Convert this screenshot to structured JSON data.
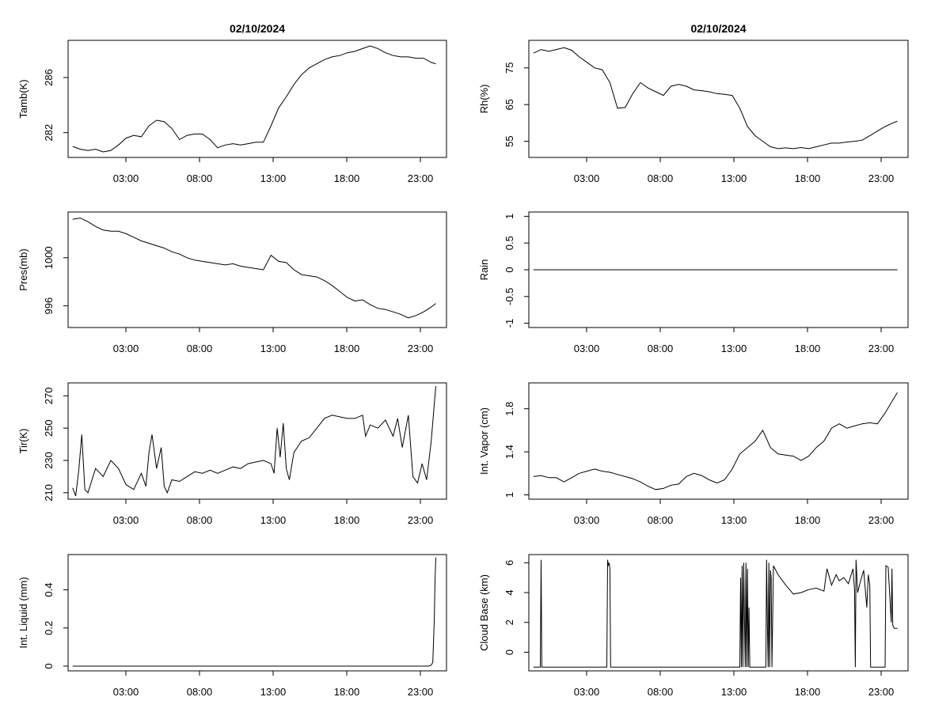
{
  "chart_data": [
    {
      "type": "line",
      "title": "02/10/2024",
      "ylabel": "Tamb(K)",
      "xlabel": "",
      "x_ticks": [
        "03:00",
        "08:00",
        "13:00",
        "18:00",
        "23:00"
      ],
      "y_ticks": [
        282,
        286
      ],
      "ylim": [
        280.2,
        288.7
      ],
      "xlim": [
        -0.3,
        24.5
      ],
      "x": [
        0.0,
        0.5,
        1.0,
        1.5,
        2.0,
        2.5,
        3.0,
        3.5,
        4.0,
        4.5,
        5.0,
        5.5,
        6.0,
        6.5,
        7.0,
        7.5,
        8.0,
        8.5,
        9.0,
        9.5,
        10.0,
        10.5,
        11.0,
        11.5,
        12.0,
        12.5,
        13.0,
        13.5,
        14.0,
        14.5,
        15.0,
        15.5,
        16.0,
        16.5,
        17.0,
        17.5,
        18.0,
        18.5,
        19.0,
        19.5,
        20.0,
        20.5,
        21.0,
        21.5,
        22.0,
        22.5,
        23.0,
        23.5,
        23.8
      ],
      "values": [
        281.0,
        280.8,
        280.7,
        280.8,
        280.6,
        280.7,
        281.1,
        281.6,
        281.8,
        281.7,
        282.5,
        282.9,
        282.8,
        282.3,
        281.5,
        281.8,
        281.9,
        281.9,
        281.5,
        280.9,
        281.1,
        281.2,
        281.1,
        281.2,
        281.3,
        281.3,
        282.5,
        283.8,
        284.6,
        285.5,
        286.2,
        286.7,
        287.0,
        287.3,
        287.5,
        287.6,
        287.8,
        287.9,
        288.1,
        288.3,
        288.1,
        287.8,
        287.6,
        287.5,
        287.5,
        287.4,
        287.4,
        287.1,
        287.0
      ]
    },
    {
      "type": "line",
      "title": "02/10/2024",
      "ylabel": "Rh(%)",
      "xlabel": "",
      "x_ticks": [
        "03:00",
        "08:00",
        "13:00",
        "18:00",
        "23:00"
      ],
      "y_ticks": [
        55,
        65,
        75
      ],
      "ylim": [
        50.6,
        82.5
      ],
      "xlim": [
        -0.3,
        24.5
      ],
      "x": [
        0.0,
        0.5,
        1.0,
        1.5,
        2.0,
        2.5,
        3.0,
        3.5,
        4.0,
        4.5,
        5.0,
        5.5,
        6.0,
        6.5,
        7.0,
        7.5,
        8.0,
        8.5,
        9.0,
        9.5,
        10.0,
        10.5,
        11.0,
        11.5,
        12.0,
        12.5,
        13.0,
        13.5,
        14.0,
        14.5,
        15.0,
        15.5,
        16.0,
        16.5,
        17.0,
        17.5,
        18.0,
        18.5,
        19.0,
        19.5,
        20.0,
        20.5,
        21.0,
        21.5,
        22.0,
        22.5,
        23.0,
        23.5,
        23.8
      ],
      "values": [
        79.0,
        80.0,
        79.5,
        80.0,
        80.5,
        79.8,
        78.0,
        76.5,
        75.0,
        74.5,
        71.0,
        64.0,
        64.2,
        68.0,
        71.0,
        69.5,
        68.5,
        67.5,
        70.0,
        70.5,
        70.0,
        69.0,
        68.8,
        68.5,
        68.0,
        67.8,
        67.5,
        64.0,
        59.0,
        56.5,
        55.0,
        53.5,
        53.0,
        53.2,
        53.0,
        53.3,
        53.0,
        53.5,
        54.0,
        54.5,
        54.5,
        54.8,
        55.0,
        55.3,
        56.5,
        57.8,
        59.0,
        60.0,
        60.5
      ]
    },
    {
      "type": "line",
      "title": "",
      "ylabel": "Pres(mb)",
      "xlabel": "",
      "x_ticks": [
        "03:00",
        "08:00",
        "13:00",
        "18:00",
        "23:00"
      ],
      "y_ticks": [
        996,
        1000
      ],
      "ylim": [
        994.2,
        1003.8
      ],
      "xlim": [
        -0.3,
        24.5
      ],
      "x": [
        0.0,
        0.5,
        1.0,
        1.5,
        2.0,
        2.5,
        3.0,
        3.5,
        4.0,
        4.5,
        5.0,
        5.5,
        6.0,
        6.5,
        7.0,
        7.5,
        8.0,
        8.5,
        9.0,
        9.5,
        10.0,
        10.5,
        11.0,
        11.5,
        12.0,
        12.5,
        13.0,
        13.5,
        14.0,
        14.5,
        15.0,
        15.5,
        16.0,
        16.5,
        17.0,
        17.5,
        18.0,
        18.5,
        19.0,
        19.5,
        20.0,
        20.5,
        21.0,
        21.5,
        22.0,
        22.5,
        23.0,
        23.5,
        23.8
      ],
      "values": [
        1003.2,
        1003.3,
        1003.0,
        1002.6,
        1002.3,
        1002.2,
        1002.2,
        1002.0,
        1001.7,
        1001.4,
        1001.2,
        1001.0,
        1000.8,
        1000.5,
        1000.3,
        1000.0,
        999.8,
        999.7,
        999.6,
        999.5,
        999.4,
        999.5,
        999.3,
        999.2,
        999.1,
        999.0,
        1000.2,
        999.7,
        999.6,
        999.0,
        998.6,
        998.5,
        998.4,
        998.1,
        997.7,
        997.2,
        996.7,
        996.4,
        996.5,
        996.1,
        995.8,
        995.7,
        995.5,
        995.3,
        995.0,
        995.2,
        995.5,
        995.9,
        996.2
      ]
    },
    {
      "type": "line",
      "title": "",
      "ylabel": "Rain",
      "xlabel": "",
      "x_ticks": [
        "03:00",
        "08:00",
        "13:00",
        "18:00",
        "23:00"
      ],
      "y_ticks": [
        -1.0,
        -0.5,
        0.0,
        0.5,
        1.0
      ],
      "ylim": [
        -1.08,
        1.08
      ],
      "xlim": [
        -0.3,
        24.5
      ],
      "x": [
        0.0,
        23.8
      ],
      "values": [
        0.0,
        0.0
      ]
    },
    {
      "type": "line",
      "title": "",
      "ylabel": "Tir(K)",
      "xlabel": "",
      "x_ticks": [
        "03:00",
        "08:00",
        "13:00",
        "18:00",
        "23:00"
      ],
      "y_ticks": [
        210,
        230,
        250,
        270
      ],
      "ylim": [
        206.0,
        278.0
      ],
      "xlim": [
        -0.3,
        24.5
      ],
      "x": [
        0.0,
        0.2,
        0.4,
        0.6,
        0.8,
        1.0,
        1.2,
        1.5,
        2.0,
        2.5,
        3.0,
        3.5,
        4.0,
        4.5,
        4.8,
        5.0,
        5.2,
        5.5,
        5.8,
        6.0,
        6.2,
        6.5,
        7.0,
        7.5,
        8.0,
        8.5,
        9.0,
        9.5,
        10.0,
        10.5,
        11.0,
        11.5,
        12.0,
        12.5,
        13.0,
        13.2,
        13.4,
        13.6,
        13.8,
        14.0,
        14.2,
        14.5,
        15.0,
        15.5,
        16.0,
        16.5,
        17.0,
        17.5,
        18.0,
        18.5,
        19.0,
        19.2,
        19.5,
        20.0,
        20.5,
        21.0,
        21.3,
        21.6,
        22.0,
        22.3,
        22.6,
        22.9,
        23.2,
        23.5,
        23.7,
        23.8
      ],
      "values": [
        213,
        208,
        224,
        246,
        212,
        210,
        216,
        225,
        220,
        230,
        225,
        215,
        212,
        222,
        214,
        235,
        246,
        225,
        238,
        214,
        210,
        218,
        217,
        220,
        223,
        222,
        224,
        222,
        224,
        226,
        225,
        228,
        229,
        230,
        228,
        222,
        250,
        232,
        253,
        225,
        218,
        235,
        242,
        244,
        250,
        256,
        258,
        257,
        256,
        256,
        258,
        245,
        252,
        250,
        255,
        245,
        256,
        238,
        258,
        220,
        216,
        228,
        218,
        242,
        265,
        276
      ]
    },
    {
      "type": "line",
      "title": "",
      "ylabel": "Int. Vapor (cm)",
      "xlabel": "",
      "x_ticks": [
        "03:00",
        "08:00",
        "13:00",
        "18:00",
        "23:00"
      ],
      "y_ticks": [
        1.0,
        1.4,
        1.8
      ],
      "ylim": [
        0.96,
        2.04
      ],
      "xlim": [
        -0.3,
        24.5
      ],
      "x": [
        0.0,
        0.5,
        1.0,
        1.5,
        2.0,
        2.5,
        3.0,
        3.5,
        4.0,
        4.5,
        5.0,
        5.5,
        6.0,
        6.5,
        7.0,
        7.5,
        8.0,
        8.5,
        9.0,
        9.5,
        10.0,
        10.5,
        11.0,
        11.5,
        12.0,
        12.5,
        13.0,
        13.5,
        14.0,
        14.5,
        15.0,
        15.5,
        16.0,
        16.5,
        17.0,
        17.5,
        18.0,
        18.5,
        19.0,
        19.5,
        20.0,
        20.5,
        21.0,
        21.5,
        22.0,
        22.5,
        23.0,
        23.5,
        23.8
      ],
      "values": [
        1.17,
        1.18,
        1.16,
        1.16,
        1.12,
        1.16,
        1.2,
        1.22,
        1.24,
        1.22,
        1.21,
        1.19,
        1.17,
        1.15,
        1.12,
        1.08,
        1.05,
        1.06,
        1.09,
        1.1,
        1.17,
        1.2,
        1.18,
        1.14,
        1.11,
        1.14,
        1.24,
        1.38,
        1.44,
        1.5,
        1.6,
        1.44,
        1.38,
        1.37,
        1.36,
        1.32,
        1.36,
        1.44,
        1.5,
        1.62,
        1.66,
        1.62,
        1.64,
        1.66,
        1.67,
        1.66,
        1.76,
        1.88,
        1.95
      ]
    },
    {
      "type": "line",
      "title": "",
      "ylabel": "Int. Liquid (mm)",
      "xlabel": "",
      "x_ticks": [
        "03:00",
        "08:00",
        "13:00",
        "18:00",
        "23:00"
      ],
      "y_ticks": [
        0.0,
        0.2,
        0.4
      ],
      "ylim": [
        -0.025,
        0.585
      ],
      "xlim": [
        -0.3,
        24.5
      ],
      "x": [
        0.0,
        23.3,
        23.5,
        23.6,
        23.7,
        23.75,
        23.8
      ],
      "values": [
        0.0,
        0.0,
        0.005,
        0.02,
        0.25,
        0.45,
        0.57
      ]
    },
    {
      "type": "line",
      "title": "",
      "ylabel": "Cloud Base (km)",
      "xlabel": "",
      "x_ticks": [
        "03:00",
        "08:00",
        "13:00",
        "18:00",
        "23:00"
      ],
      "y_ticks": [
        0,
        2,
        4,
        6
      ],
      "ylim": [
        -1.25,
        6.55
      ],
      "xlim": [
        -0.3,
        24.5
      ],
      "x": [
        0.0,
        0.45,
        0.5,
        0.55,
        4.8,
        4.85,
        4.9,
        4.95,
        5.0,
        5.05,
        13.5,
        13.55,
        13.6,
        13.65,
        13.7,
        13.75,
        13.8,
        13.85,
        13.9,
        13.95,
        14.0,
        14.05,
        14.1,
        14.15,
        15.2,
        15.25,
        15.3,
        15.35,
        15.4,
        15.45,
        15.5,
        15.55,
        15.6,
        15.7,
        16.0,
        16.5,
        17.0,
        17.5,
        18.0,
        18.5,
        19.0,
        19.2,
        19.5,
        19.8,
        20.0,
        20.3,
        20.6,
        20.9,
        21.0,
        21.05,
        21.1,
        21.2,
        21.4,
        21.6,
        21.8,
        21.9,
        22.0,
        22.05,
        23.0,
        23.05,
        23.2,
        23.4,
        23.45,
        23.5,
        23.6,
        23.8
      ],
      "values": [
        -1,
        -1,
        6.2,
        -1,
        -1,
        6.2,
        5.8,
        6.0,
        5.6,
        -1,
        -1,
        5.0,
        -1,
        5.8,
        -1,
        6.0,
        2.5,
        -1,
        6.0,
        -1,
        5.6,
        -1,
        3.0,
        -1,
        -1,
        6.2,
        2.0,
        -1,
        6.0,
        -1,
        5.5,
        5.0,
        -1,
        5.8,
        5.2,
        4.5,
        3.9,
        4.0,
        4.2,
        4.3,
        4.1,
        5.6,
        4.5,
        5.2,
        4.8,
        5.0,
        4.6,
        5.6,
        4.2,
        -1,
        6.2,
        4.0,
        4.8,
        5.5,
        3.0,
        5.2,
        4.5,
        -1,
        -1,
        5.8,
        5.7,
        2.0,
        5.6,
        1.8,
        1.6,
        1.6
      ]
    }
  ]
}
